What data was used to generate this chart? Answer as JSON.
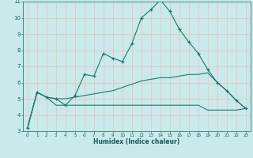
{
  "xlabel": "Humidex (Indice chaleur)",
  "x": [
    0,
    1,
    2,
    3,
    4,
    5,
    6,
    7,
    8,
    9,
    10,
    11,
    12,
    13,
    14,
    15,
    16,
    17,
    18,
    19,
    20,
    21,
    22,
    23
  ],
  "line1": [
    3.2,
    5.4,
    5.1,
    5.0,
    4.6,
    5.2,
    6.5,
    6.4,
    7.8,
    7.5,
    7.3,
    8.4,
    10.0,
    10.5,
    11.1,
    10.4,
    9.3,
    8.5,
    7.8,
    6.8,
    6.0,
    5.5,
    4.9,
    4.4
  ],
  "line2": [
    3.2,
    5.4,
    5.1,
    5.0,
    5.0,
    5.1,
    5.2,
    5.3,
    5.4,
    5.5,
    5.7,
    5.9,
    6.1,
    6.2,
    6.3,
    6.3,
    6.4,
    6.5,
    6.5,
    6.6,
    6.0,
    5.5,
    4.9,
    4.4
  ],
  "line3": [
    3.2,
    5.4,
    5.1,
    4.6,
    4.6,
    4.6,
    4.6,
    4.6,
    4.6,
    4.6,
    4.6,
    4.6,
    4.6,
    4.6,
    4.6,
    4.6,
    4.6,
    4.6,
    4.6,
    4.3,
    4.3,
    4.3,
    4.3,
    4.4
  ],
  "line_color": "#1a7a6e",
  "bg_color": "#c8eaea",
  "grid_color": "#e8c8c8",
  "axis_bg": "#c8eaea",
  "label_color": "#1a5a5a",
  "ylim": [
    3,
    11
  ],
  "xlim": [
    -0.5,
    23.5
  ],
  "yticks": [
    3,
    4,
    5,
    6,
    7,
    8,
    9,
    10,
    11
  ],
  "xticks": [
    0,
    1,
    2,
    3,
    4,
    5,
    6,
    7,
    8,
    9,
    10,
    11,
    12,
    13,
    14,
    15,
    16,
    17,
    18,
    19,
    20,
    21,
    22,
    23
  ]
}
